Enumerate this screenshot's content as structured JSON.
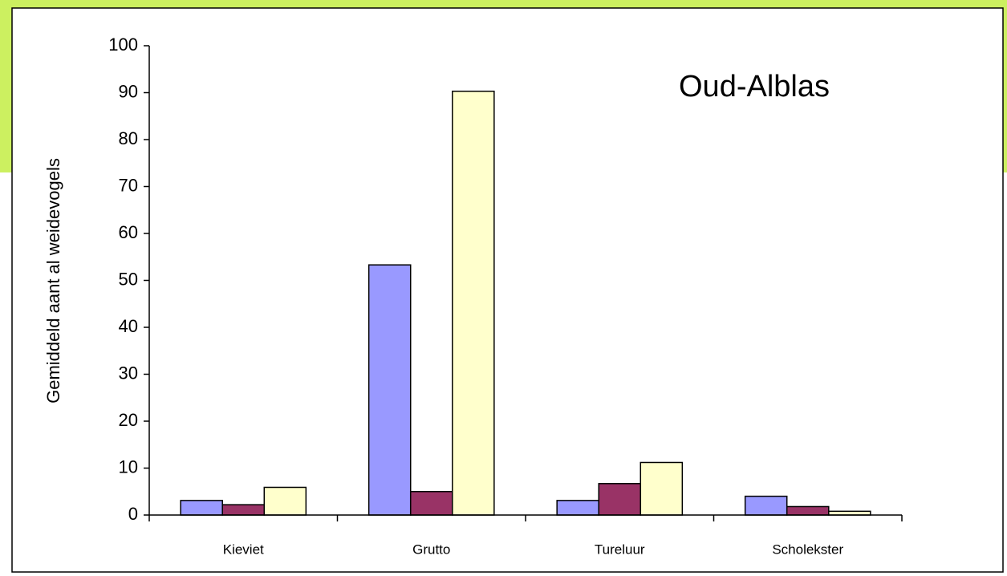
{
  "chart_data": {
    "type": "bar",
    "title": "Oud-Alblas",
    "y_label": "Gemiddeld aant al weidevogels",
    "categories": [
      "Kieviet",
      "Grutto",
      "Tureluur",
      "Scholekster"
    ],
    "series": [
      {
        "color": "#9999ff",
        "values": [
          3.1,
          53.3,
          3.1,
          4.0
        ]
      },
      {
        "color": "#993366",
        "values": [
          2.2,
          5.0,
          6.7,
          1.8
        ]
      },
      {
        "color": "#ffffcc",
        "values": [
          5.9,
          90.3,
          11.2,
          0.8
        ]
      }
    ],
    "ylim": [
      0,
      100
    ],
    "yticks": [
      0,
      10,
      20,
      30,
      40,
      50,
      60,
      70,
      80,
      90,
      100
    ]
  }
}
